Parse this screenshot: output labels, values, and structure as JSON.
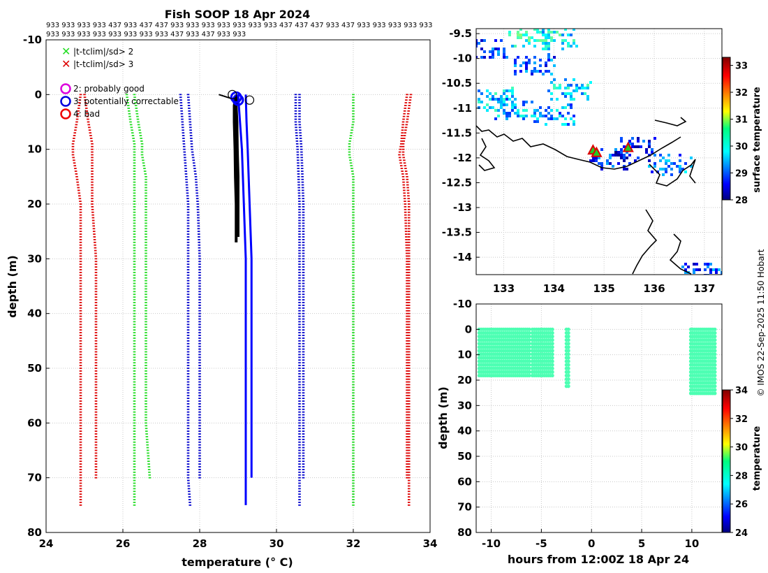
{
  "figure_title": "Fish SOOP 18 Apr 2024",
  "code_rows": [
    "933 933 933 933 437 933 437 437 933 933 933 933 933 933 933 437 437 437 933 437 933 933 933 933 933",
    "933 933 933 933 933 933 933 933 437 933 437 933 933"
  ],
  "credit": "© IMOS 22-Sep-2025 11:50 Hobart",
  "chart_data": [
    {
      "id": "profile",
      "type": "line",
      "title": "Fish SOOP 18 Apr 2024",
      "xlabel": "temperature (° C)",
      "ylabel": "depth (m)",
      "xlim": [
        24,
        34
      ],
      "ylim": [
        80,
        -10
      ],
      "xticks": [
        24,
        26,
        28,
        30,
        32,
        34
      ],
      "yticks": [
        -10,
        0,
        10,
        20,
        30,
        40,
        50,
        60,
        70,
        80
      ],
      "grid": true,
      "legend": [
        {
          "label": "|t-tclim|/sd> 2",
          "marker": "x",
          "color": "#22dd22"
        },
        {
          "label": "|t-tclim|/sd> 3",
          "marker": "x",
          "color": "#dd0000"
        },
        {
          "label": "2: probably good",
          "marker": "o",
          "color": "#dd00dd"
        },
        {
          "label": "3: potentially correctable",
          "marker": "o",
          "color": "#0000dd"
        },
        {
          "label": "4: bad",
          "marker": "o",
          "color": "#ee0000"
        }
      ],
      "climatology_series": [
        {
          "name": "clim -3sd (long)",
          "color": "#dd0000",
          "depth": [
            0,
            5,
            9,
            11,
            15,
            20,
            30,
            40,
            50,
            60,
            70,
            75
          ],
          "temp": [
            24.9,
            24.8,
            24.7,
            24.7,
            24.8,
            24.9,
            24.9,
            24.9,
            24.9,
            24.9,
            24.9,
            24.9
          ]
        },
        {
          "name": "clim -3sd (short)",
          "color": "#dd0000",
          "depth": [
            0,
            5,
            9,
            11,
            15,
            20,
            30,
            40,
            50,
            60,
            70
          ],
          "temp": [
            25.0,
            25.1,
            25.2,
            25.2,
            25.2,
            25.2,
            25.3,
            25.3,
            25.3,
            25.3,
            25.3
          ]
        },
        {
          "name": "clim -2sd (long)",
          "color": "#22dd22",
          "depth": [
            0,
            5,
            9,
            11,
            15,
            20,
            30,
            40,
            50,
            60,
            70,
            75
          ],
          "temp": [
            26.1,
            26.2,
            26.3,
            26.3,
            26.3,
            26.3,
            26.3,
            26.3,
            26.3,
            26.3,
            26.3,
            26.3
          ]
        },
        {
          "name": "clim -2sd (short)",
          "color": "#22dd22",
          "depth": [
            0,
            5,
            9,
            11,
            15,
            20,
            30,
            40,
            50,
            60,
            70
          ],
          "temp": [
            26.3,
            26.4,
            26.5,
            26.5,
            26.6,
            26.6,
            26.6,
            26.6,
            26.6,
            26.6,
            26.7
          ]
        },
        {
          "name": "clim mean (long)",
          "color": "#0000cc",
          "depth": [
            0,
            5,
            10,
            15,
            20,
            30,
            40,
            50,
            60,
            70,
            75
          ],
          "temp": [
            27.5,
            27.55,
            27.6,
            27.65,
            27.7,
            27.7,
            27.7,
            27.7,
            27.7,
            27.7,
            27.75
          ]
        },
        {
          "name": "clim mean (short)",
          "color": "#0000cc",
          "depth": [
            0,
            5,
            10,
            15,
            20,
            30,
            40,
            50,
            60,
            70
          ],
          "temp": [
            27.7,
            27.75,
            27.8,
            27.9,
            27.95,
            28.0,
            28.0,
            28.0,
            28.0,
            28.0
          ]
        },
        {
          "name": "clim +1sd (long)",
          "color": "#0000cc",
          "depth": [
            0,
            5,
            10,
            20,
            30,
            40,
            50,
            60,
            70,
            75
          ],
          "temp": [
            30.5,
            30.5,
            30.55,
            30.6,
            30.6,
            30.6,
            30.6,
            30.6,
            30.6,
            30.6
          ]
        },
        {
          "name": "clim +1sd (short)",
          "color": "#0000cc",
          "depth": [
            0,
            5,
            10,
            20,
            30,
            40,
            50,
            60,
            70
          ],
          "temp": [
            30.6,
            30.6,
            30.65,
            30.7,
            30.7,
            30.7,
            30.7,
            30.7,
            30.7
          ]
        },
        {
          "name": "clim +2sd",
          "color": "#22dd22",
          "depth": [
            0,
            5,
            9,
            11,
            15,
            20,
            30,
            40,
            50,
            60,
            70,
            75
          ],
          "temp": [
            32.0,
            32.0,
            31.9,
            31.9,
            32.0,
            32.0,
            32.0,
            32.0,
            32.0,
            32.0,
            32.0,
            32.0
          ]
        },
        {
          "name": "clim +3sd (long)",
          "color": "#dd0000",
          "depth": [
            0,
            5,
            9,
            11,
            15,
            20,
            30,
            40,
            50,
            60,
            70,
            75
          ],
          "temp": [
            33.5,
            33.4,
            33.3,
            33.3,
            33.4,
            33.45,
            33.45,
            33.45,
            33.45,
            33.45,
            33.45,
            33.45
          ]
        },
        {
          "name": "clim +3sd (short)",
          "color": "#dd0000",
          "depth": [
            0,
            5,
            9,
            11,
            15,
            20,
            30,
            40,
            50,
            60,
            70
          ],
          "temp": [
            33.4,
            33.3,
            33.25,
            33.2,
            33.3,
            33.35,
            33.4,
            33.4,
            33.4,
            33.4,
            33.4
          ]
        }
      ],
      "observed_profiles": [
        {
          "name": "profile 1",
          "color": "#000000",
          "depth": [
            0,
            2,
            5,
            10,
            15,
            20,
            27
          ],
          "temp": [
            28.95,
            28.9,
            28.9,
            28.92,
            28.93,
            28.95,
            28.95
          ]
        },
        {
          "name": "profile 2",
          "color": "#000000",
          "depth": [
            0,
            2,
            5,
            10,
            15,
            20,
            26
          ],
          "temp": [
            29.0,
            28.95,
            28.97,
            28.98,
            29.0,
            29.0,
            29.0
          ]
        },
        {
          "name": "profile 3",
          "color": "#0000ff",
          "depth": [
            0,
            5,
            10,
            20,
            30,
            40,
            50,
            60,
            70,
            75
          ],
          "temp": [
            29.0,
            29.05,
            29.1,
            29.15,
            29.2,
            29.2,
            29.2,
            29.2,
            29.2,
            29.2
          ]
        },
        {
          "name": "profile 4",
          "color": "#0000ff",
          "depth": [
            0,
            5,
            10,
            20,
            30,
            40,
            50,
            60,
            70
          ],
          "temp": [
            29.2,
            29.22,
            29.25,
            29.3,
            29.35,
            29.35,
            29.35,
            29.35,
            29.35
          ]
        }
      ],
      "surface_markers": [
        {
          "temp": 28.95,
          "depth": 0.5,
          "color": "#0000ff"
        },
        {
          "temp": 29.0,
          "depth": 1,
          "color": "#0000ff"
        },
        {
          "temp": 28.85,
          "depth": 0,
          "color": "#000000"
        },
        {
          "temp": 29.3,
          "depth": 1,
          "color": "#000000"
        }
      ]
    },
    {
      "id": "map",
      "type": "heatmap",
      "title": "",
      "xticks": [
        133,
        134,
        135,
        136,
        137
      ],
      "yticks": [
        -9.5,
        -10,
        -10.5,
        -11,
        -11.5,
        -12,
        -12.5,
        -13,
        -13.5,
        -14
      ],
      "xlim": [
        132.45,
        137.35
      ],
      "ylim": [
        -14.35,
        -9.4
      ],
      "grid": true,
      "colorbar": {
        "label": "surface temperature",
        "range": [
          28,
          33.3
        ],
        "ticks": [
          28,
          29,
          30,
          31,
          32,
          33
        ]
      },
      "sst_clusters": [
        {
          "lon": 133.5,
          "lat": -9.55,
          "temp": 30.1
        },
        {
          "lon": 134.0,
          "lat": -9.6,
          "temp": 29.9
        },
        {
          "lon": 132.6,
          "lat": -9.8,
          "temp": 29.0
        },
        {
          "lon": 133.6,
          "lat": -10.1,
          "temp": 29.1
        },
        {
          "lon": 132.8,
          "lat": -10.8,
          "temp": 29.7
        },
        {
          "lon": 133.2,
          "lat": -11.0,
          "temp": 29.6
        },
        {
          "lon": 134.0,
          "lat": -11.1,
          "temp": 29.5
        },
        {
          "lon": 134.3,
          "lat": -10.6,
          "temp": 29.8
        },
        {
          "lon": 135.1,
          "lat": -12.0,
          "temp": 28.9
        },
        {
          "lon": 135.6,
          "lat": -11.8,
          "temp": 28.7
        },
        {
          "lon": 136.3,
          "lat": -12.1,
          "temp": 29.3
        },
        {
          "lon": 136.9,
          "lat": -14.3,
          "temp": 29.0
        }
      ],
      "track_markers": [
        {
          "lon": 134.78,
          "lat": -11.85
        },
        {
          "lon": 134.85,
          "lat": -11.9
        },
        {
          "lon": 135.48,
          "lat": -11.8
        }
      ]
    },
    {
      "id": "time-depth",
      "type": "scatter",
      "xlabel": "hours from 12:00Z 18 Apr 24",
      "ylabel": "depth (m)",
      "xlim": [
        -11.5,
        13
      ],
      "ylim": [
        80,
        -10
      ],
      "xticks": [
        -10,
        -5,
        0,
        5,
        10
      ],
      "yticks": [
        -10,
        0,
        10,
        20,
        30,
        40,
        50,
        60,
        70,
        80
      ],
      "grid": true,
      "colorbar": {
        "label": "temperature",
        "range": [
          24,
          34
        ],
        "ticks": [
          24,
          26,
          28,
          30,
          32,
          34
        ]
      },
      "groups": [
        {
          "t_start": -11.2,
          "t_end": -9.8,
          "depth_max": 19.5,
          "temp": 28.5
        },
        {
          "t_start": -9.6,
          "t_end": -7.4,
          "depth_max": 19.5,
          "temp": 28.5
        },
        {
          "t_start": -7.2,
          "t_end": -6.1,
          "depth_max": 19.5,
          "temp": 28.5
        },
        {
          "t_start": -5.9,
          "t_end": -3.9,
          "depth_max": 19.5,
          "temp": 28.5
        },
        {
          "t_start": -2.5,
          "t_end": -2.3,
          "depth_max": 23,
          "temp": 28.5
        },
        {
          "t_start": 9.9,
          "t_end": 12.3,
          "depth_max": 26.5,
          "temp": 28.5
        }
      ]
    }
  ]
}
